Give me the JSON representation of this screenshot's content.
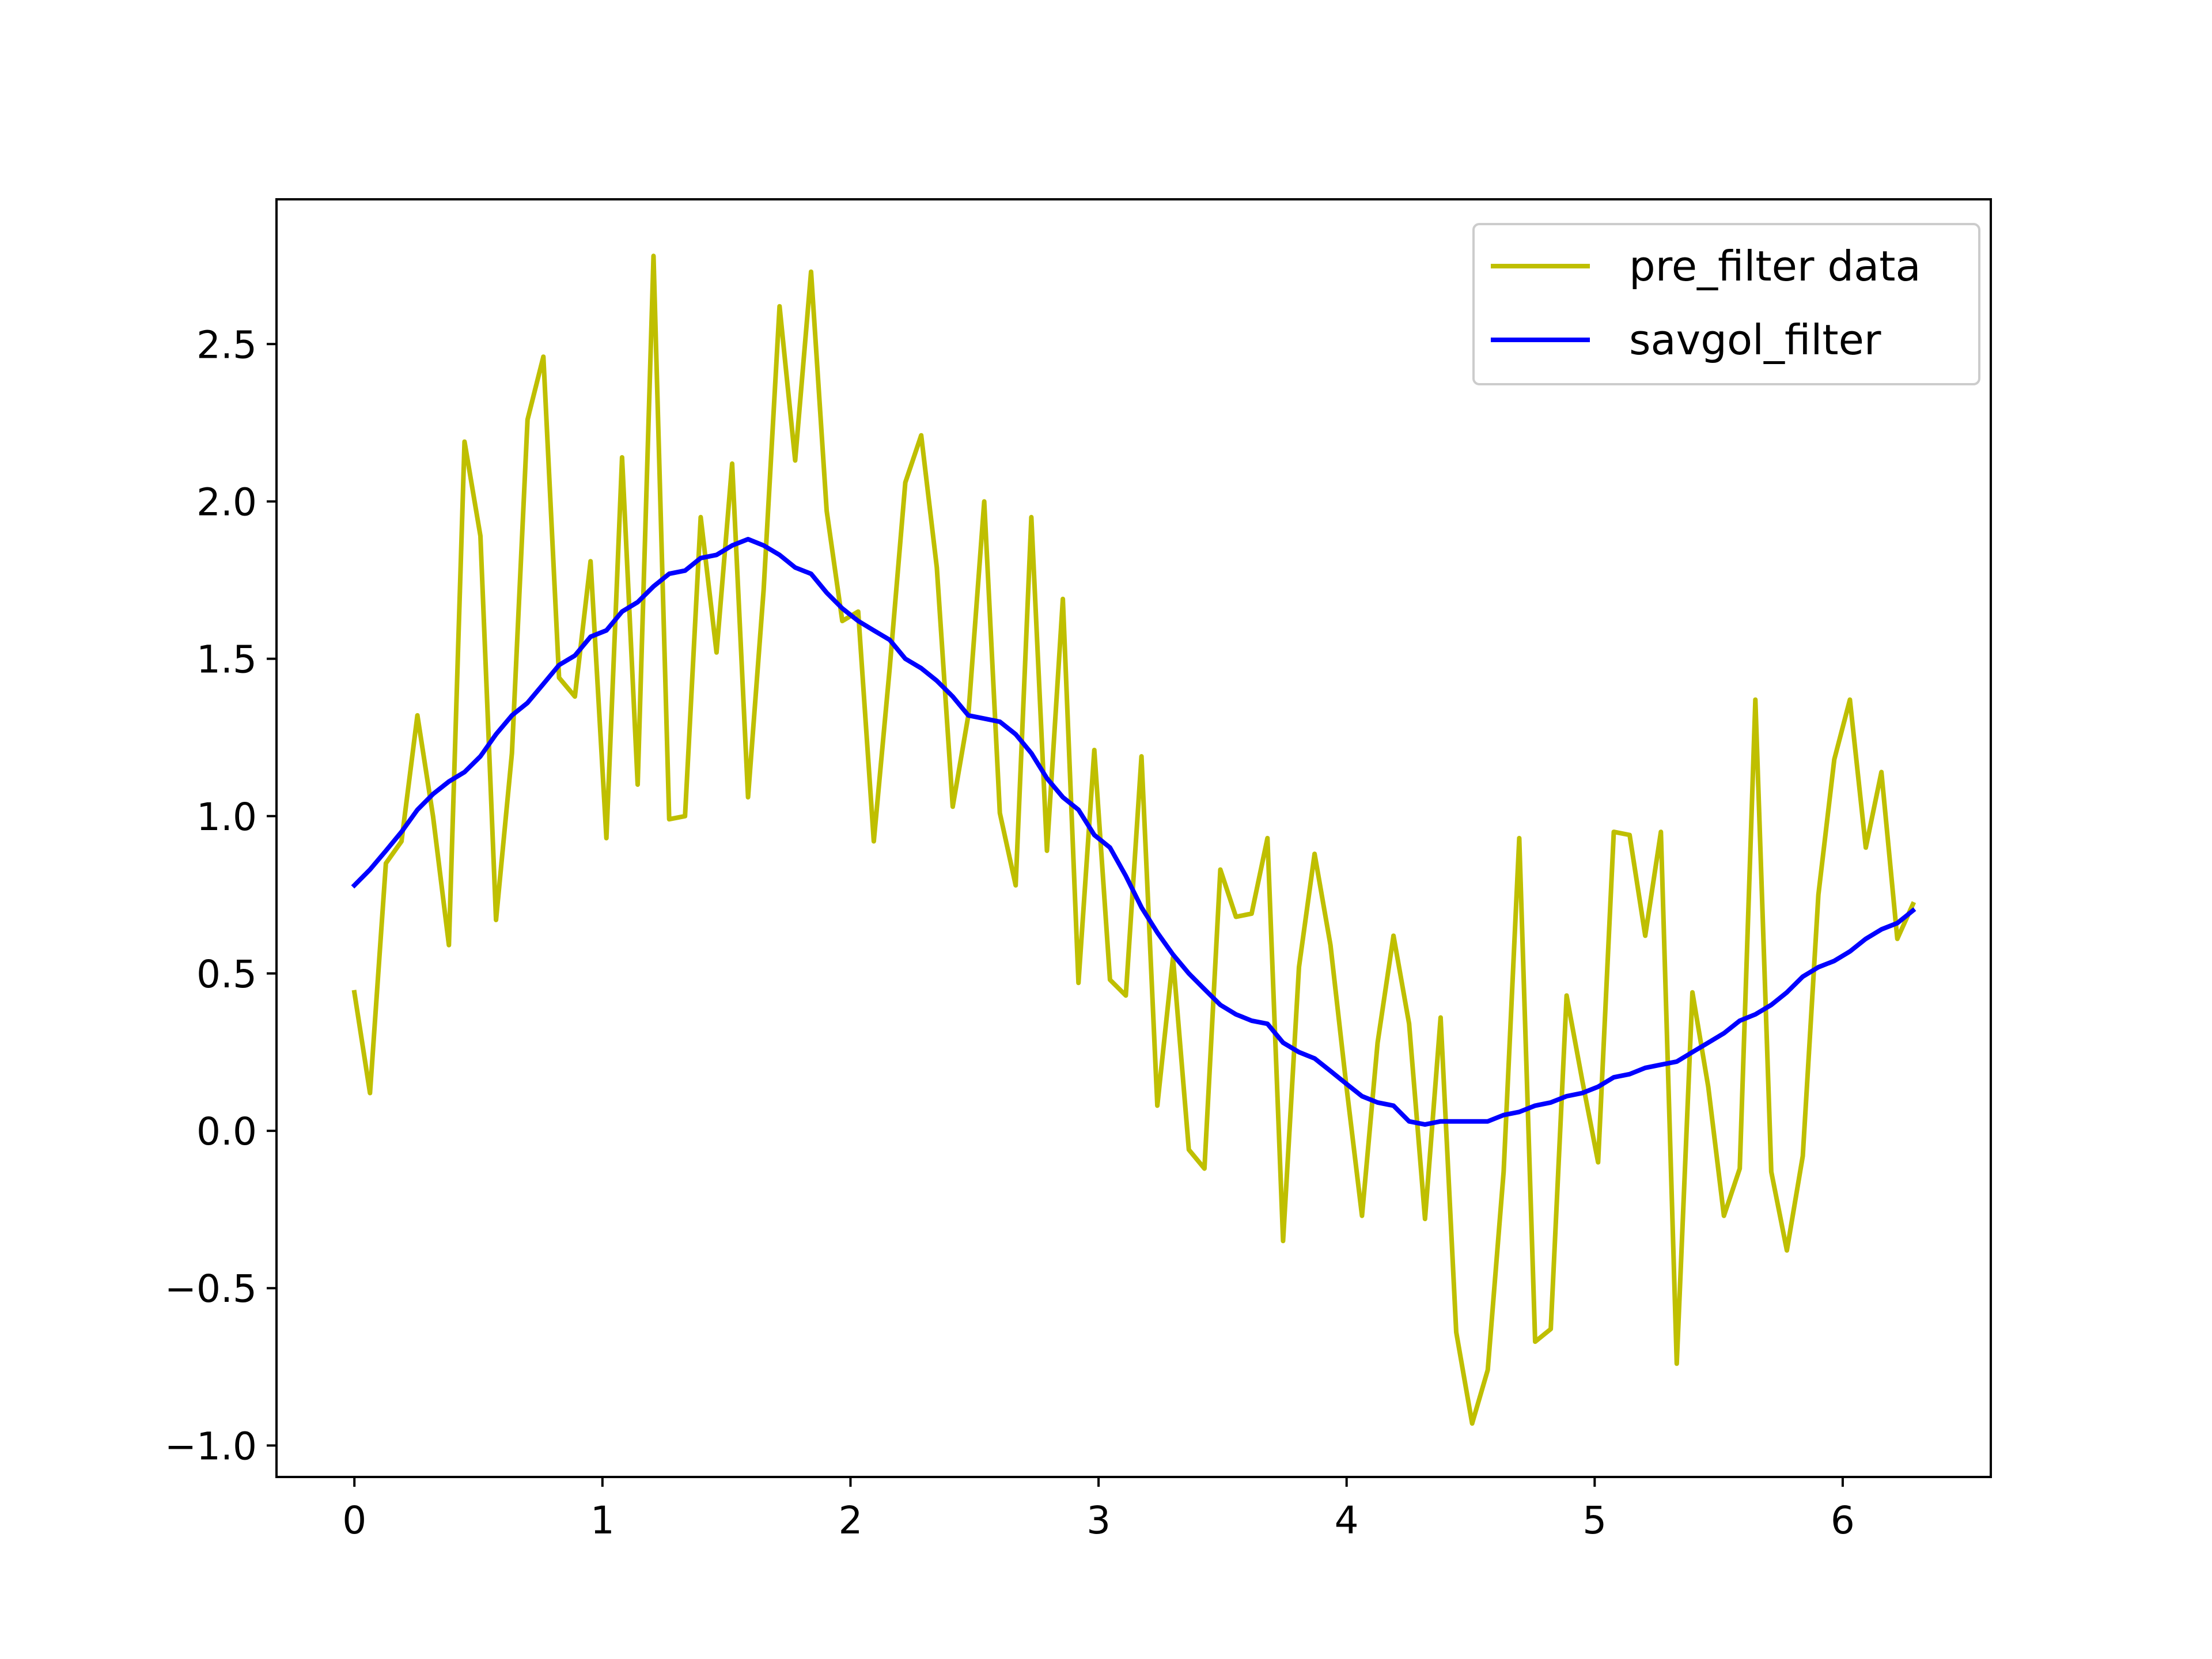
{
  "chart_data": {
    "type": "line",
    "title": "",
    "xlabel": "",
    "ylabel": "",
    "xlim": [
      -0.314,
      6.597
    ],
    "ylim": [
      -1.1,
      2.96
    ],
    "xticks": [
      0,
      1,
      2,
      3,
      4,
      5,
      6
    ],
    "yticks": [
      -1.0,
      -0.5,
      0.0,
      0.5,
      1.0,
      1.5,
      2.0,
      2.5
    ],
    "xtick_labels": [
      "0",
      "1",
      "2",
      "3",
      "4",
      "5",
      "6"
    ],
    "ytick_labels": [
      "−1.0",
      "−0.5",
      "0.0",
      "0.5",
      "1.0",
      "1.5",
      "2.0",
      "2.5"
    ],
    "grid": false,
    "legend_position": "top-right",
    "x": [
      0.0,
      0.063,
      0.127,
      0.19,
      0.254,
      0.317,
      0.381,
      0.444,
      0.508,
      0.571,
      0.635,
      0.698,
      0.762,
      0.825,
      0.889,
      0.952,
      1.016,
      1.079,
      1.142,
      1.206,
      1.269,
      1.333,
      1.396,
      1.46,
      1.523,
      1.587,
      1.65,
      1.714,
      1.777,
      1.841,
      1.904,
      1.967,
      2.031,
      2.094,
      2.158,
      2.221,
      2.285,
      2.348,
      2.412,
      2.475,
      2.539,
      2.602,
      2.666,
      2.729,
      2.792,
      2.856,
      2.919,
      2.983,
      3.046,
      3.11,
      3.173,
      3.237,
      3.3,
      3.364,
      3.427,
      3.491,
      3.554,
      3.617,
      3.681,
      3.744,
      3.808,
      3.871,
      3.935,
      3.998,
      4.062,
      4.125,
      4.189,
      4.252,
      4.316,
      4.379,
      4.442,
      4.506,
      4.569,
      4.633,
      4.696,
      4.76,
      4.823,
      4.887,
      4.95,
      5.014,
      5.077,
      5.141,
      5.204,
      5.267,
      5.331,
      5.394,
      5.458,
      5.521,
      5.585,
      5.648,
      5.712,
      5.775,
      5.839,
      5.902,
      5.966,
      6.029,
      6.093,
      6.156,
      6.22,
      6.283
    ],
    "series": [
      {
        "name": "pre_filter data",
        "color": "#bfbf00",
        "values": [
          0.44,
          0.12,
          0.85,
          0.92,
          1.32,
          1.0,
          0.59,
          2.19,
          1.89,
          0.67,
          1.2,
          2.26,
          2.46,
          1.44,
          1.38,
          1.81,
          0.93,
          2.14,
          1.1,
          2.78,
          0.99,
          1.0,
          1.95,
          1.52,
          2.12,
          1.06,
          1.72,
          2.62,
          2.13,
          2.73,
          1.97,
          1.62,
          1.65,
          0.92,
          1.47,
          2.06,
          2.21,
          1.79,
          1.03,
          1.32,
          2.0,
          1.01,
          0.78,
          1.95,
          0.89,
          1.69,
          0.47,
          1.21,
          0.48,
          0.43,
          1.19,
          0.08,
          0.55,
          -0.06,
          -0.12,
          0.83,
          0.68,
          0.69,
          0.93,
          -0.35,
          0.52,
          0.88,
          0.59,
          0.15,
          -0.27,
          0.28,
          0.62,
          0.34,
          -0.28,
          0.36,
          -0.64,
          -0.93,
          -0.76,
          -0.13,
          0.93,
          -0.67,
          -0.63,
          0.43,
          0.16,
          -0.1,
          0.95,
          0.94,
          0.62,
          0.95,
          -0.74,
          0.44,
          0.14,
          -0.27,
          -0.12,
          1.37,
          -0.13,
          -0.38,
          -0.08,
          0.75,
          1.18,
          1.37,
          0.9,
          1.14,
          0.61,
          0.72
        ]
      },
      {
        "name": "savgol_filter",
        "color": "#0000ff",
        "values": [
          0.78,
          0.83,
          0.89,
          0.95,
          1.02,
          1.07,
          1.11,
          1.14,
          1.19,
          1.26,
          1.32,
          1.36,
          1.42,
          1.48,
          1.51,
          1.57,
          1.59,
          1.65,
          1.68,
          1.73,
          1.77,
          1.78,
          1.82,
          1.83,
          1.86,
          1.88,
          1.86,
          1.83,
          1.79,
          1.77,
          1.71,
          1.66,
          1.62,
          1.59,
          1.56,
          1.5,
          1.47,
          1.43,
          1.38,
          1.32,
          1.31,
          1.3,
          1.26,
          1.2,
          1.12,
          1.06,
          1.02,
          0.94,
          0.9,
          0.81,
          0.71,
          0.63,
          0.56,
          0.5,
          0.45,
          0.4,
          0.37,
          0.35,
          0.34,
          0.28,
          0.25,
          0.23,
          0.19,
          0.15,
          0.11,
          0.09,
          0.08,
          0.03,
          0.02,
          0.03,
          0.03,
          0.03,
          0.03,
          0.05,
          0.06,
          0.08,
          0.09,
          0.11,
          0.12,
          0.14,
          0.17,
          0.18,
          0.2,
          0.21,
          0.22,
          0.25,
          0.28,
          0.31,
          0.35,
          0.37,
          0.4,
          0.44,
          0.49,
          0.52,
          0.54,
          0.57,
          0.61,
          0.64,
          0.66,
          0.7
        ]
      }
    ]
  }
}
